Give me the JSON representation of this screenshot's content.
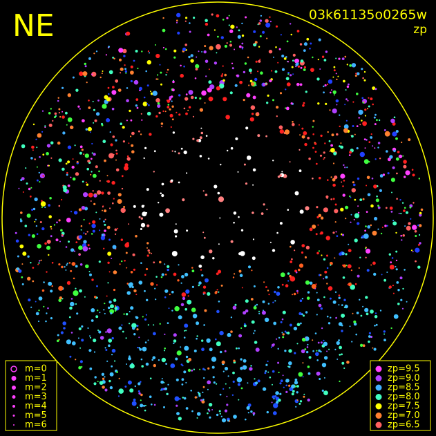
{
  "header": {
    "direction": "NE",
    "frame_id": "03k61135o0265w",
    "mode": "zp"
  },
  "magnitude_legend": [
    "m=0",
    "m=1",
    "m=2",
    "m=3",
    "m=4",
    "m=5",
    "m=6"
  ],
  "zp_legend": [
    {
      "label": "zp=9.5",
      "color": "#ff40ff"
    },
    {
      "label": "zp=9.0",
      "color": "#b040ff"
    },
    {
      "label": "zp=8.5",
      "color": "#40b0ff"
    },
    {
      "label": "zp=8.0",
      "color": "#40ffc0"
    },
    {
      "label": "zp=7.5",
      "color": "#ffff00"
    },
    {
      "label": "zp=7.0",
      "color": "#ff8030"
    },
    {
      "label": "zp=6.5",
      "color": "#ff6060"
    }
  ]
}
